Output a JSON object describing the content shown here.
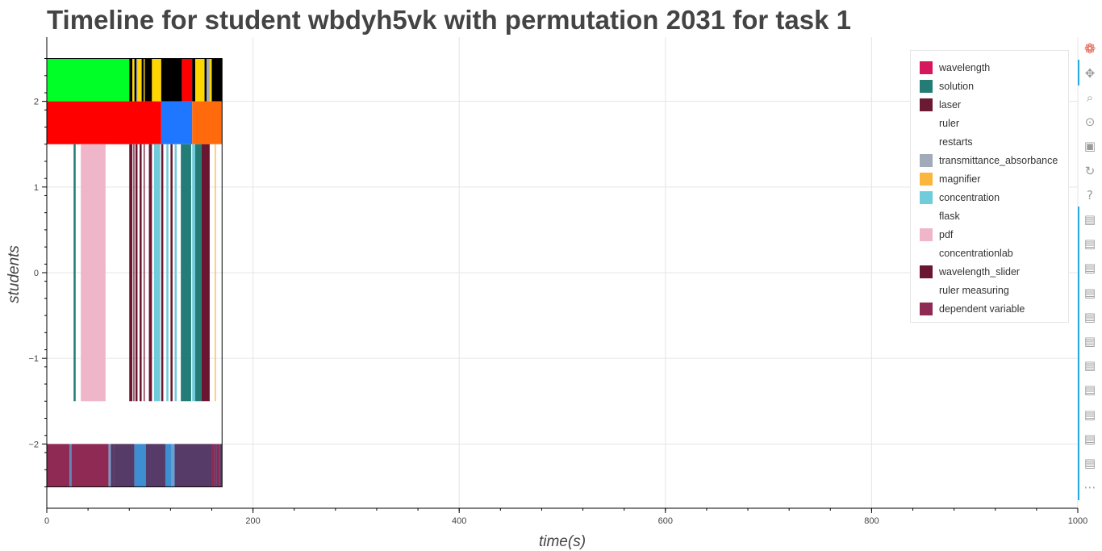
{
  "chart_data": {
    "type": "timeline",
    "title": "Timeline for student wbdyh5vk with permutation 2031 for task 1",
    "xlabel": "time(s)",
    "ylabel": "students",
    "xlim": [
      0,
      1000
    ],
    "ylim": [
      -2.75,
      2.75
    ],
    "x_ticks": [
      0,
      200,
      400,
      600,
      800,
      1000
    ],
    "x_tick_labels": [
      "0",
      "200",
      "400",
      "600",
      "800",
      "1000"
    ],
    "y_ticks": [
      2,
      1,
      0,
      -1,
      -2
    ],
    "y_tick_labels": [
      "2",
      "1",
      "0",
      "−1",
      "−2"
    ],
    "grid": true,
    "legend_position": "top-right",
    "legend": [
      {
        "label": "wavelength",
        "color": "#d6175e"
      },
      {
        "label": "solution",
        "color": "#237d76"
      },
      {
        "label": "laser",
        "color": "#6a1a33"
      },
      {
        "label": "ruler",
        "color": "#ffffff"
      },
      {
        "label": "restarts",
        "color": "#ffffff"
      },
      {
        "label": "transmittance_absorbance",
        "color": "#a0aab9"
      },
      {
        "label": "magnifier",
        "color": "#fbb63d"
      },
      {
        "label": "concentration",
        "color": "#70ccda"
      },
      {
        "label": "flask",
        "color": "#ffffff"
      },
      {
        "label": "pdf",
        "color": "#efb5c8"
      },
      {
        "label": "concentrationlab",
        "color": "#ffffff"
      },
      {
        "label": "wavelength_slider",
        "color": "#6b1631"
      },
      {
        "label": "ruler measuring",
        "color": "#ffffff"
      },
      {
        "label": "dependent variable",
        "color": "#8f2a55"
      }
    ],
    "rows": [
      {
        "y_range": [
          2.0,
          2.5
        ],
        "segments": [
          {
            "start": 0,
            "end": 80,
            "color": "#00ff26"
          },
          {
            "start": 80,
            "end": 83,
            "color": "#000000"
          },
          {
            "start": 83,
            "end": 85,
            "color": "#ffd700"
          },
          {
            "start": 85,
            "end": 87,
            "color": "#000000"
          },
          {
            "start": 87,
            "end": 88,
            "color": "#a0aab9"
          },
          {
            "start": 88,
            "end": 92,
            "color": "#ffd700"
          },
          {
            "start": 92,
            "end": 94,
            "color": "#000000"
          },
          {
            "start": 94,
            "end": 95,
            "color": "#ffd700"
          },
          {
            "start": 95,
            "end": 102,
            "color": "#000000"
          },
          {
            "start": 102,
            "end": 111,
            "color": "#ffd700"
          },
          {
            "start": 111,
            "end": 131,
            "color": "#000000"
          },
          {
            "start": 131,
            "end": 141,
            "color": "#ff0000"
          },
          {
            "start": 141,
            "end": 144,
            "color": "#000000"
          },
          {
            "start": 144,
            "end": 153,
            "color": "#ffd700"
          },
          {
            "start": 153,
            "end": 155,
            "color": "#000000"
          },
          {
            "start": 155,
            "end": 158,
            "color": "#a0aab9"
          },
          {
            "start": 158,
            "end": 160,
            "color": "#ffd700"
          },
          {
            "start": 160,
            "end": 170,
            "color": "#000000"
          }
        ]
      },
      {
        "y_range": [
          1.5,
          2.0
        ],
        "segments": [
          {
            "start": 0,
            "end": 111,
            "color": "#ff0000"
          },
          {
            "start": 111,
            "end": 141,
            "color": "#1f77ff"
          },
          {
            "start": 141,
            "end": 170,
            "color": "#ff6a0d"
          }
        ]
      },
      {
        "y_range": [
          -1.5,
          1.5
        ],
        "segments": [
          {
            "start": 26,
            "end": 28,
            "color": "#237d76"
          },
          {
            "start": 33,
            "end": 57,
            "color": "#efb5c8"
          },
          {
            "start": 80,
            "end": 83,
            "color": "#6b1631"
          },
          {
            "start": 84,
            "end": 85,
            "color": "#6b1631"
          },
          {
            "start": 86,
            "end": 88,
            "color": "#6b1631"
          },
          {
            "start": 90,
            "end": 92,
            "color": "#6b1631"
          },
          {
            "start": 94,
            "end": 95,
            "color": "#6b1631"
          },
          {
            "start": 99,
            "end": 102,
            "color": "#6b1631"
          },
          {
            "start": 104,
            "end": 110,
            "color": "#70ccda"
          },
          {
            "start": 111,
            "end": 113,
            "color": "#6b1631"
          },
          {
            "start": 116,
            "end": 118,
            "color": "#70ccda"
          },
          {
            "start": 120,
            "end": 122,
            "color": "#6b1631"
          },
          {
            "start": 124,
            "end": 126,
            "color": "#70ccda"
          },
          {
            "start": 130,
            "end": 140,
            "color": "#237d76"
          },
          {
            "start": 141,
            "end": 144,
            "color": "#70ccda"
          },
          {
            "start": 144,
            "end": 150,
            "color": "#237d76"
          },
          {
            "start": 150,
            "end": 158,
            "color": "#6b1631"
          },
          {
            "start": 163,
            "end": 164,
            "color": "#fbb63d"
          }
        ]
      },
      {
        "y_range": [
          -2.5,
          -2.0
        ],
        "segments": [
          {
            "start": 0,
            "end": 22,
            "color": "#8f2a55"
          },
          {
            "start": 22,
            "end": 24,
            "color": "#5a86b5"
          },
          {
            "start": 24,
            "end": 60,
            "color": "#8f2a55"
          },
          {
            "start": 60,
            "end": 62,
            "color": "#6a9fd1"
          },
          {
            "start": 62,
            "end": 65,
            "color": "#5a3a66"
          },
          {
            "start": 65,
            "end": 85,
            "color": "#563a67"
          },
          {
            "start": 85,
            "end": 96,
            "color": "#3d8fd1"
          },
          {
            "start": 96,
            "end": 115,
            "color": "#563a67"
          },
          {
            "start": 115,
            "end": 121,
            "color": "#3d8fd1"
          },
          {
            "start": 121,
            "end": 124,
            "color": "#6a9fd1"
          },
          {
            "start": 124,
            "end": 160,
            "color": "#563a67"
          },
          {
            "start": 160,
            "end": 163,
            "color": "#8f2a55"
          },
          {
            "start": 163,
            "end": 165,
            "color": "#563a67"
          },
          {
            "start": 165,
            "end": 168,
            "color": "#8f2a55"
          },
          {
            "start": 168,
            "end": 170,
            "color": "#563a67"
          }
        ]
      }
    ],
    "outlined_block": {
      "x_range": [
        0,
        170
      ],
      "y_range": [
        -2.5,
        2.5
      ]
    }
  },
  "toolbar": {
    "items": [
      {
        "name": "bokeh-logo-icon",
        "glyph": "❁"
      },
      {
        "name": "pan-icon",
        "glyph": "✥"
      },
      {
        "name": "box-zoom-icon",
        "glyph": "⌕"
      },
      {
        "name": "wheel-zoom-icon",
        "glyph": "⊙"
      },
      {
        "name": "save-icon",
        "glyph": "▣"
      },
      {
        "name": "reset-icon",
        "glyph": "↻"
      },
      {
        "name": "help-icon",
        "glyph": "?"
      },
      {
        "name": "hover-icon",
        "glyph": "▤"
      },
      {
        "name": "hover-icon",
        "glyph": "▤"
      },
      {
        "name": "hover-icon",
        "glyph": "▤"
      },
      {
        "name": "hover-icon",
        "glyph": "▤"
      },
      {
        "name": "hover-icon",
        "glyph": "▤"
      },
      {
        "name": "hover-icon",
        "glyph": "▤"
      },
      {
        "name": "hover-icon",
        "glyph": "▤"
      },
      {
        "name": "hover-icon",
        "glyph": "▤"
      },
      {
        "name": "hover-icon",
        "glyph": "▤"
      },
      {
        "name": "hover-icon",
        "glyph": "▤"
      },
      {
        "name": "hover-icon",
        "glyph": "▤"
      },
      {
        "name": "more-icon",
        "glyph": "⋯"
      }
    ],
    "accent_color": "#26aae1"
  }
}
